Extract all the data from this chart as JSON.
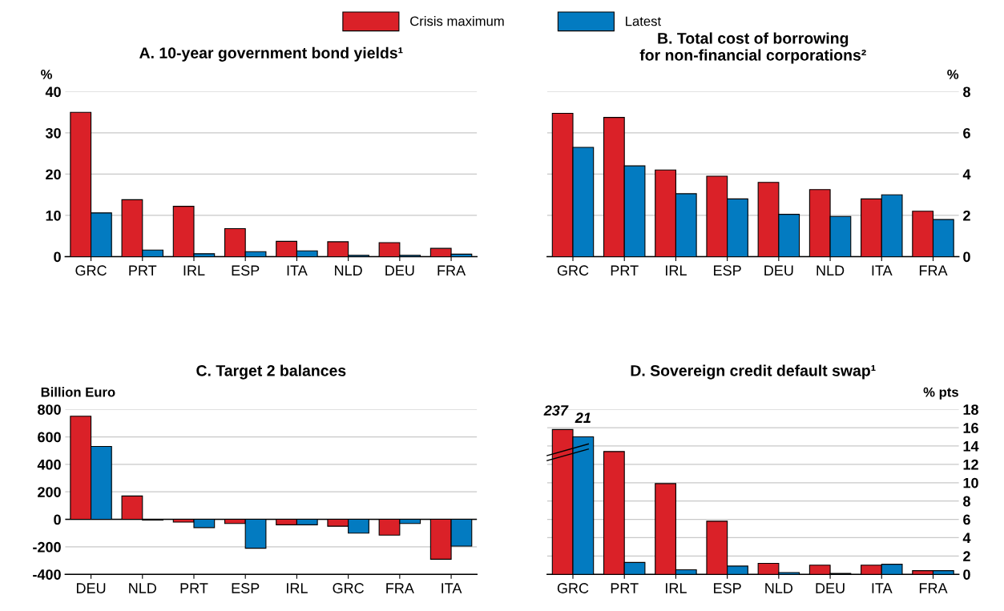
{
  "chart_data": [
    {
      "type": "bar",
      "title": "A. 10-year government bond yields¹",
      "ylabel": "%",
      "categories": [
        "GRC",
        "PRT",
        "IRL",
        "ESP",
        "ITA",
        "NLD",
        "DEU",
        "FRA"
      ],
      "series": [
        {
          "name": "Crisis maximum",
          "color": "#da2128",
          "values": [
            35,
            13.8,
            12.2,
            6.8,
            3.7,
            3.6,
            3.4,
            2.0
          ]
        },
        {
          "name": "Latest",
          "color": "#037bc1",
          "values": [
            10.6,
            1.6,
            0.7,
            1.2,
            1.4,
            0.3,
            0.3,
            0.6
          ]
        }
      ],
      "ylim": [
        0,
        40
      ],
      "yticks": [
        0,
        10,
        20,
        30,
        40
      ],
      "grid": "y",
      "legend": "top"
    },
    {
      "type": "bar",
      "title": "B. Total cost of borrowing\nfor non-financial corporations²",
      "y2label": "%",
      "categories": [
        "GRC",
        "PRT",
        "IRL",
        "ESP",
        "DEU",
        "NLD",
        "ITA",
        "FRA"
      ],
      "series": [
        {
          "color": "#da2128",
          "axis": "y2",
          "values": [
            6.95,
            6.75,
            4.2,
            3.9,
            3.6,
            3.25,
            2.8,
            2.2
          ]
        },
        {
          "color": "#037bc1",
          "axis": "y2",
          "values": [
            5.3,
            4.4,
            3.05,
            2.8,
            2.05,
            1.95,
            3.0,
            1.8
          ]
        }
      ],
      "y2lim": [
        0,
        8
      ],
      "y2ticks": [
        0,
        2,
        4,
        6,
        8
      ],
      "grid": "y"
    },
    {
      "type": "bar",
      "title": "C. Target 2 balances",
      "ylabel": "Billion Euro",
      "categories": [
        "DEU",
        "NLD",
        "PRT",
        "ESP",
        "IRL",
        "GRC",
        "FRA",
        "ITA"
      ],
      "series": [
        {
          "color": "#da2128",
          "values": [
            750,
            170,
            -20,
            -30,
            -40,
            -50,
            -115,
            -290
          ]
        },
        {
          "color": "#037bc1",
          "values": [
            530,
            -5,
            -60,
            -210,
            -40,
            -100,
            -30,
            -195
          ]
        }
      ],
      "ylim": [
        -400,
        800
      ],
      "yticks": [
        {
          "value": -400,
          "label": "-400"
        },
        {
          "value": -200,
          "label": "-200"
        },
        0,
        200,
        400,
        600,
        800
      ],
      "grid": "y"
    },
    {
      "type": "bar",
      "title": "D. Sovereign credit default swap¹",
      "y2label": "% pts",
      "categories": [
        "GRC",
        "PRT",
        "IRL",
        "ESP",
        "NLD",
        "DEU",
        "ITA",
        "FRA"
      ],
      "series": [
        {
          "color": "#da2128",
          "axis": "y2",
          "values": [
            15.8,
            13.4,
            9.9,
            5.8,
            1.2,
            1.0,
            1.0,
            0.4
          ]
        },
        {
          "color": "#037bc1",
          "axis": "y2",
          "values": [
            15.0,
            1.3,
            0.5,
            0.9,
            0.2,
            0.1,
            1.1,
            0.4
          ]
        }
      ],
      "y2lim": [
        0,
        18
      ],
      "y2ticks": [
        0,
        2,
        4,
        6,
        8,
        10,
        12,
        14,
        16,
        18
      ],
      "grid": "y",
      "annotations": [
        "237",
        "21"
      ]
    }
  ]
}
